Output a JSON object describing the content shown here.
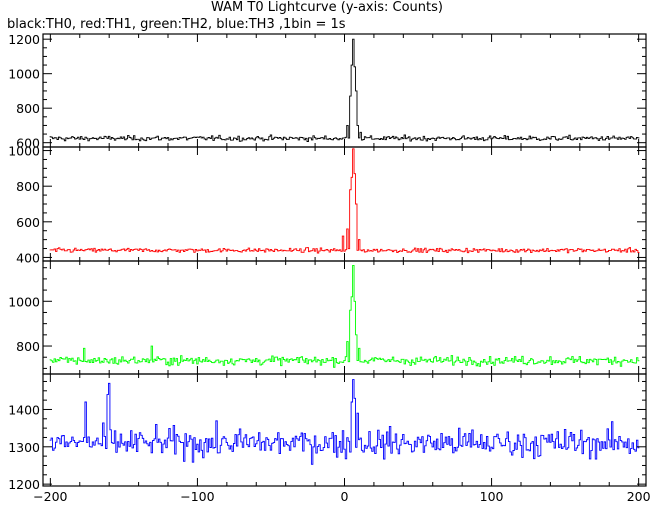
{
  "chart_data": {
    "type": "line",
    "title": "WAM T0 Lightcurve (y-axis: Counts)",
    "subtitle": "black:TH0, red:TH1, green:TH2, blue:TH3 ,1bin = 1s",
    "xlabel": "",
    "ylabel": "",
    "xlim": [
      -205,
      205
    ],
    "xticks": [
      -200,
      -100,
      0,
      100,
      200
    ],
    "grid": false,
    "legend": "none",
    "series": [
      {
        "name": "TH0",
        "color": "#000000",
        "ylim": [
          575,
          1230
        ],
        "yticks": [
          600,
          800,
          1000,
          1200
        ],
        "baseline": 625,
        "noise": 12,
        "peaks": [
          {
            "x": 2,
            "y": 700
          },
          {
            "x": 4,
            "y": 870
          },
          {
            "x": 5,
            "y": 1050
          },
          {
            "x": 6,
            "y": 1200
          },
          {
            "x": 7,
            "y": 1040
          },
          {
            "x": 8,
            "y": 900
          },
          {
            "x": 9,
            "y": 700
          },
          {
            "x": 11,
            "y": 660
          }
        ]
      },
      {
        "name": "TH1",
        "color": "#ff0000",
        "ylim": [
          380,
          1020
        ],
        "yticks": [
          400,
          600,
          800,
          1000
        ],
        "baseline": 440,
        "noise": 10,
        "peaks": [
          {
            "x": -1,
            "y": 520
          },
          {
            "x": 2,
            "y": 560
          },
          {
            "x": 4,
            "y": 780
          },
          {
            "x": 5,
            "y": 850
          },
          {
            "x": 6,
            "y": 1010
          },
          {
            "x": 7,
            "y": 870
          },
          {
            "x": 8,
            "y": 700
          },
          {
            "x": 10,
            "y": 500
          }
        ]
      },
      {
        "name": "TH2",
        "color": "#00ff00",
        "ylim": [
          675,
          1180
        ],
        "yticks": [
          800,
          1000
        ],
        "baseline": 735,
        "noise": 16,
        "peaks": [
          {
            "x": 2,
            "y": 820
          },
          {
            "x": 4,
            "y": 960
          },
          {
            "x": 5,
            "y": 1020
          },
          {
            "x": 6,
            "y": 1160
          },
          {
            "x": 7,
            "y": 1000
          },
          {
            "x": 8,
            "y": 850
          },
          {
            "x": 10,
            "y": 790
          },
          {
            "x": -131,
            "y": 800
          },
          {
            "x": -177,
            "y": 790
          }
        ]
      },
      {
        "name": "TH3",
        "color": "#0000ff",
        "ylim": [
          1195,
          1495
        ],
        "yticks": [
          1200,
          1300,
          1400
        ],
        "baseline": 1310,
        "noise": 32,
        "peaks": [
          {
            "x": -160,
            "y": 1470
          },
          {
            "x": -161,
            "y": 1440
          },
          {
            "x": 5,
            "y": 1420
          },
          {
            "x": 6,
            "y": 1480
          },
          {
            "x": 7,
            "y": 1430
          },
          {
            "x": -176,
            "y": 1420
          },
          {
            "x": 9,
            "y": 1390
          }
        ]
      }
    ]
  }
}
